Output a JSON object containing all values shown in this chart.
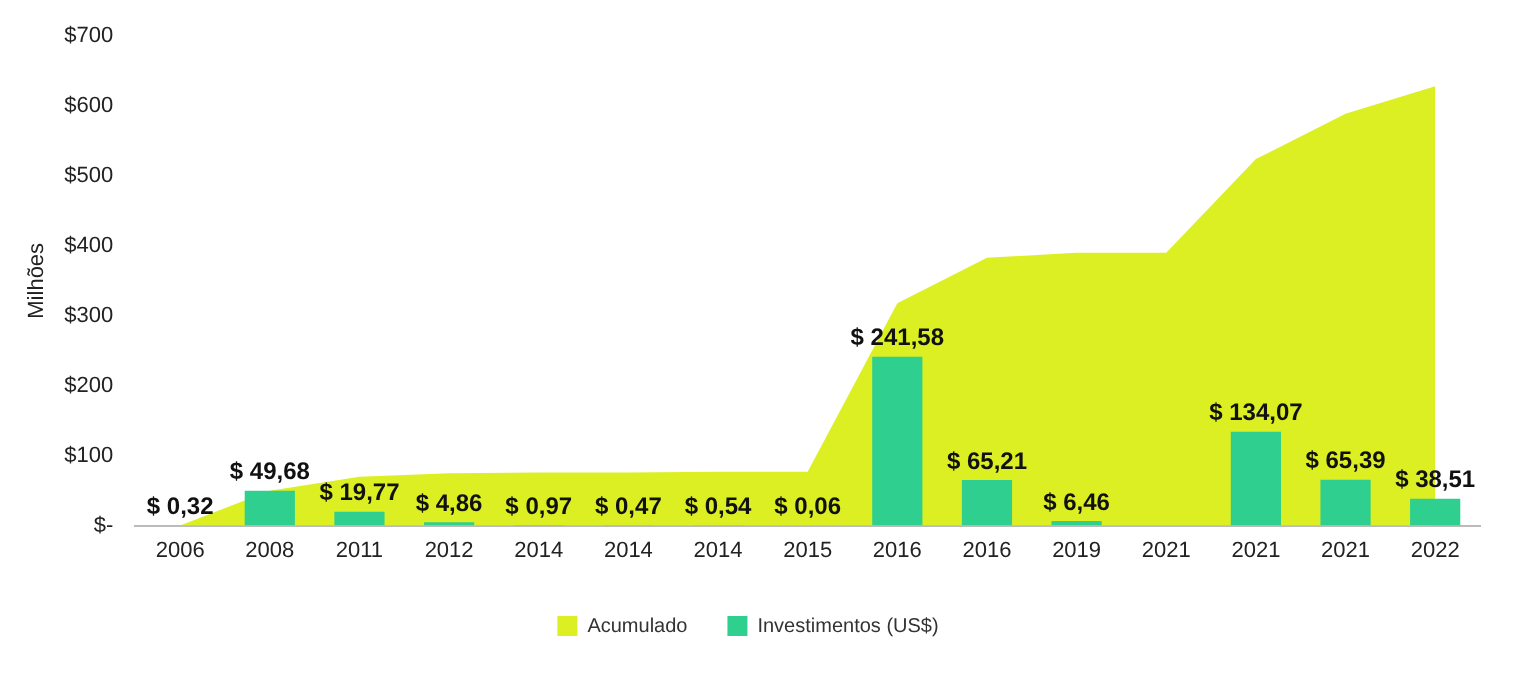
{
  "chart_data": {
    "type": "bar",
    "ylabel": "Milhões",
    "categories": [
      "2006",
      "2008",
      "2011",
      "2012",
      "2014",
      "2014",
      "2014",
      "2015",
      "2016",
      "2016",
      "2019",
      "2021",
      "2021",
      "2021",
      "2022"
    ],
    "series": [
      {
        "name": "Acumulado",
        "type": "area",
        "color": "#dcef22",
        "values": [
          0,
          50,
          70,
          75,
          76,
          76,
          77,
          77,
          318,
          383,
          390,
          390,
          524,
          589,
          628
        ]
      },
      {
        "name": "Investimentos (US$)",
        "color": "#2ecf8f",
        "values": [
          0.32,
          49.68,
          19.77,
          4.86,
          0.97,
          0.47,
          0.54,
          0.06,
          241.58,
          65.21,
          6.46,
          null,
          134.07,
          65.39,
          38.51
        ],
        "value_labels": [
          "$ 0,32",
          "$ 49,68",
          "$ 19,77",
          "$ 4,86",
          "$ 0,97",
          "$ 0,47",
          "$ 0,54",
          "$ 0,06",
          "$ 241,58",
          "$ 65,21",
          "$ 6,46",
          null,
          "$ 134,07",
          "$ 65,39",
          "$ 38,51"
        ]
      }
    ],
    "ylim": [
      0,
      700
    ],
    "yticks": [
      {
        "value": 0,
        "label": "$-"
      },
      {
        "value": 100,
        "label": "$100"
      },
      {
        "value": 200,
        "label": "$200"
      },
      {
        "value": 300,
        "label": "$300"
      },
      {
        "value": 400,
        "label": "$400"
      },
      {
        "value": 500,
        "label": "$500"
      },
      {
        "value": 600,
        "label": "$600"
      },
      {
        "value": 700,
        "label": "$700"
      }
    ],
    "grid": false,
    "legend": "bottom"
  }
}
